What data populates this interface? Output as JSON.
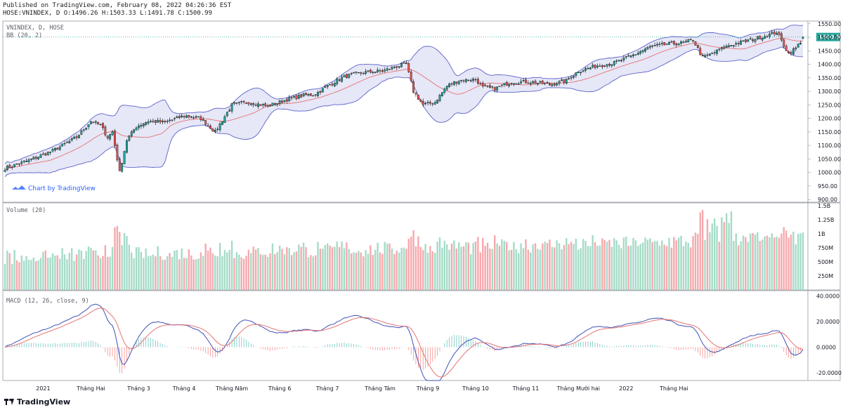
{
  "header": {
    "line1": "Published on TradingView.com, February 08, 2022 04:26:36 EST",
    "line2": "HOSE:VNINDEX, D O:1496.26 H:1503.33 L:1491.78 C:1500.99"
  },
  "watermark": "Chart by TradingView",
  "footer": {
    "brand": "TradingView"
  },
  "colors": {
    "up": "#26a69a",
    "down": "#ef5350",
    "bb_fill": "#d1d4f0",
    "bb_line": "#5b63c9",
    "ma_line": "#e57373",
    "macd": "#3f51b5",
    "signal": "#e57373"
  },
  "chart_data": [
    {
      "type": "candlestick",
      "title": "VNINDEX, D, HOSE",
      "overlay_label": "BB (20, 2)",
      "last_price": "1500.99",
      "ylim": [
        890,
        1560
      ],
      "yticks": [
        900,
        950,
        1000,
        1050,
        1100,
        1150,
        1200,
        1250,
        1300,
        1350,
        1400,
        1450,
        1500,
        1550
      ],
      "ytick_labels": [
        "900.00",
        "950.00",
        "1000.00",
        "1050.00",
        "1100.00",
        "1150.00",
        "1200.00",
        "1250.00",
        "1300.00",
        "1350.00",
        "1400.00",
        "1450.00",
        "1500.00",
        "1550.00"
      ],
      "close_anchors": [
        [
          0,
          1015
        ],
        [
          10,
          1045
        ],
        [
          20,
          1080
        ],
        [
          30,
          1130
        ],
        [
          36,
          1190
        ],
        [
          40,
          1175
        ],
        [
          43,
          1130
        ],
        [
          45,
          1150
        ],
        [
          48,
          1000
        ],
        [
          51,
          1120
        ],
        [
          55,
          1170
        ],
        [
          60,
          1190
        ],
        [
          67,
          1185
        ],
        [
          75,
          1210
        ],
        [
          82,
          1200
        ],
        [
          88,
          1150
        ],
        [
          95,
          1250
        ],
        [
          102,
          1260
        ],
        [
          110,
          1245
        ],
        [
          118,
          1270
        ],
        [
          125,
          1285
        ],
        [
          130,
          1290
        ],
        [
          135,
          1320
        ],
        [
          142,
          1355
        ],
        [
          150,
          1370
        ],
        [
          158,
          1375
        ],
        [
          165,
          1395
        ],
        [
          168,
          1400
        ],
        [
          171,
          1300
        ],
        [
          175,
          1250
        ],
        [
          180,
          1260
        ],
        [
          185,
          1320
        ],
        [
          190,
          1340
        ],
        [
          197,
          1345
        ],
        [
          200,
          1315
        ],
        [
          205,
          1310
        ],
        [
          212,
          1335
        ],
        [
          220,
          1335
        ],
        [
          228,
          1325
        ],
        [
          235,
          1340
        ],
        [
          240,
          1375
        ],
        [
          248,
          1395
        ],
        [
          255,
          1405
        ],
        [
          262,
          1430
        ],
        [
          270,
          1465
        ],
        [
          278,
          1475
        ],
        [
          284,
          1480
        ],
        [
          288,
          1490
        ],
        [
          292,
          1425
        ],
        [
          296,
          1440
        ],
        [
          303,
          1470
        ],
        [
          312,
          1490
        ],
        [
          320,
          1510
        ],
        [
          323,
          1520
        ],
        [
          326,
          1470
        ],
        [
          328,
          1440
        ],
        [
          331,
          1460
        ],
        [
          334,
          1496
        ]
      ]
    },
    {
      "type": "bar",
      "title": "Volume (20)",
      "ylim": [
        0,
        1550000000
      ],
      "yticks": [
        250000000,
        500000000,
        750000000,
        1000000000,
        1250000000,
        1500000000
      ],
      "ytick_labels": [
        "250M",
        "500M",
        "750M",
        "1B",
        "1.25B",
        "1.5B"
      ]
    },
    {
      "type": "line",
      "title": "MACD (12, 26, close, 9)",
      "ylim": [
        -26,
        44
      ],
      "yticks": [
        -20,
        0,
        20,
        40
      ],
      "ytick_labels": [
        "-20.0000",
        "0.0000",
        "20.0000",
        "40.0000"
      ],
      "series": [
        {
          "name": "MACD"
        },
        {
          "name": "Signal"
        },
        {
          "name": "Histogram"
        }
      ]
    }
  ],
  "x_axis": {
    "labels": [
      "2021",
      "Tháng Hai",
      "Tháng 3",
      "Tháng 4",
      "Tháng Năm",
      "Tháng 6",
      "Tháng 7",
      "Tháng Tám",
      "Tháng 9",
      "Tháng 10",
      "Tháng 11",
      "Tháng Mười hai",
      "2022",
      "Tháng Hai"
    ],
    "label_index": [
      16,
      36,
      56,
      75,
      95,
      115,
      135,
      157,
      177,
      197,
      218,
      240,
      260,
      280
    ]
  }
}
